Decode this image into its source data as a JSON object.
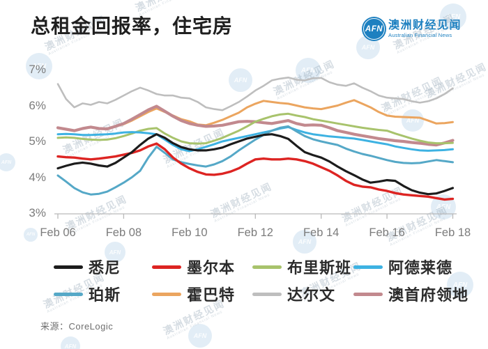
{
  "title": "总租金回报率，住宅房",
  "logo": {
    "abbr": "AFN",
    "name_zh": "澳洲财经见闻",
    "name_en": "Australian Financial News",
    "brand_color": "#1d80c0"
  },
  "source": "来源：CoreLogic",
  "watermark": {
    "text_zh": "澳洲财经见闻",
    "text_en": "Australian Financial News",
    "abbr": "AFN"
  },
  "chart_data": {
    "type": "line",
    "title": "总租金回报率，住宅房",
    "grid": false,
    "legend_position": "bottom",
    "x_start": "Feb 2006",
    "x_step_months": 3,
    "x_ticks": [
      "Feb 06",
      "Feb 08",
      "Feb 10",
      "Feb 12",
      "Feb 14",
      "Feb 16",
      "Feb 18"
    ],
    "y_ticks": [
      {
        "label": "7%",
        "value": 7
      },
      {
        "label": "6%",
        "value": 6
      },
      {
        "label": "5%",
        "value": 5
      },
      {
        "label": "4%",
        "value": 4
      },
      {
        "label": "3%",
        "value": 3
      }
    ],
    "ylim": [
      3,
      7
    ],
    "y_unit": "%",
    "series": [
      {
        "key": "sydney",
        "name": "悉尼",
        "color": "#1c1c1c",
        "values": [
          4.25,
          4.32,
          4.38,
          4.41,
          4.38,
          4.33,
          4.3,
          4.4,
          4.55,
          4.7,
          4.9,
          5.08,
          5.2,
          5.1,
          4.95,
          4.84,
          4.78,
          4.75,
          4.75,
          4.78,
          4.83,
          4.92,
          5.0,
          5.08,
          5.13,
          5.18,
          5.2,
          5.15,
          5.07,
          4.88,
          4.7,
          4.62,
          4.55,
          4.44,
          4.3,
          4.17,
          4.06,
          3.94,
          3.85,
          3.88,
          3.92,
          3.9,
          3.76,
          3.64,
          3.57,
          3.53,
          3.55,
          3.62,
          3.7
        ]
      },
      {
        "key": "melbourne",
        "name": "墨尔本",
        "color": "#dd2422",
        "values": [
          4.58,
          4.56,
          4.55,
          4.52,
          4.5,
          4.52,
          4.55,
          4.58,
          4.63,
          4.68,
          4.75,
          4.86,
          4.94,
          4.78,
          4.55,
          4.38,
          4.25,
          4.15,
          4.08,
          4.07,
          4.1,
          4.16,
          4.25,
          4.38,
          4.5,
          4.52,
          4.5,
          4.5,
          4.52,
          4.5,
          4.45,
          4.38,
          4.28,
          4.18,
          4.05,
          3.9,
          3.79,
          3.74,
          3.72,
          3.66,
          3.62,
          3.56,
          3.52,
          3.5,
          3.48,
          3.46,
          3.42,
          3.38,
          3.4
        ]
      },
      {
        "key": "brisbane",
        "name": "布里斯班",
        "color": "#a8c36c",
        "values": [
          5.1,
          5.11,
          5.1,
          5.07,
          5.05,
          5.04,
          5.05,
          5.09,
          5.15,
          5.22,
          5.3,
          5.35,
          5.37,
          5.22,
          5.1,
          5.0,
          4.95,
          4.94,
          4.95,
          5.02,
          5.1,
          5.2,
          5.3,
          5.42,
          5.55,
          5.63,
          5.7,
          5.75,
          5.77,
          5.72,
          5.68,
          5.62,
          5.58,
          5.54,
          5.5,
          5.46,
          5.42,
          5.38,
          5.35,
          5.32,
          5.3,
          5.22,
          5.15,
          5.08,
          5.02,
          4.97,
          4.95,
          4.95,
          4.96
        ]
      },
      {
        "key": "adelaide",
        "name": "阿德莱德",
        "color": "#3db2e2",
        "values": [
          5.2,
          5.21,
          5.2,
          5.18,
          5.18,
          5.19,
          5.2,
          5.22,
          5.25,
          5.26,
          5.25,
          5.23,
          5.2,
          5.05,
          4.9,
          4.78,
          4.73,
          4.78,
          4.85,
          4.92,
          5.0,
          5.05,
          5.1,
          5.15,
          5.2,
          5.25,
          5.3,
          5.36,
          5.4,
          5.32,
          5.25,
          5.2,
          5.17,
          5.14,
          5.12,
          5.1,
          5.08,
          5.04,
          5.0,
          4.96,
          4.92,
          4.86,
          4.82,
          4.78,
          4.75,
          4.74,
          4.75,
          4.76,
          4.78
        ]
      },
      {
        "key": "perth",
        "name": "珀斯",
        "color": "#55a8c7",
        "values": [
          4.05,
          3.88,
          3.7,
          3.58,
          3.52,
          3.54,
          3.6,
          3.72,
          3.85,
          4.0,
          4.18,
          4.55,
          4.85,
          4.68,
          4.5,
          4.42,
          4.37,
          4.33,
          4.3,
          4.36,
          4.45,
          4.58,
          4.75,
          4.9,
          5.05,
          5.18,
          5.3,
          5.38,
          5.42,
          5.28,
          5.15,
          5.06,
          5.0,
          4.95,
          4.9,
          4.8,
          4.72,
          4.65,
          4.6,
          4.54,
          4.48,
          4.43,
          4.4,
          4.39,
          4.4,
          4.44,
          4.48,
          4.45,
          4.42
        ]
      },
      {
        "key": "hobart",
        "name": "霍巴特",
        "color": "#eba55f",
        "values": [
          5.38,
          5.34,
          5.3,
          5.36,
          5.4,
          5.36,
          5.35,
          5.42,
          5.48,
          5.58,
          5.7,
          5.82,
          5.92,
          5.82,
          5.72,
          5.62,
          5.56,
          5.47,
          5.45,
          5.52,
          5.6,
          5.7,
          5.8,
          5.95,
          6.05,
          6.13,
          6.1,
          6.07,
          6.05,
          6.0,
          5.95,
          5.92,
          5.9,
          5.95,
          6.0,
          6.08,
          6.15,
          6.05,
          5.95,
          5.82,
          5.72,
          5.69,
          5.68,
          5.67,
          5.66,
          5.58,
          5.5,
          5.51,
          5.54
        ]
      },
      {
        "key": "darwin",
        "name": "达尔文",
        "color": "#bebebe",
        "values": [
          6.6,
          6.18,
          5.95,
          6.06,
          6.02,
          6.1,
          6.06,
          6.16,
          6.28,
          6.4,
          6.5,
          6.42,
          6.32,
          6.28,
          6.28,
          6.22,
          6.2,
          6.1,
          5.95,
          5.9,
          5.87,
          5.98,
          6.1,
          6.25,
          6.42,
          6.55,
          6.7,
          6.75,
          6.78,
          6.72,
          6.7,
          6.76,
          6.77,
          6.65,
          6.58,
          6.55,
          6.62,
          6.5,
          6.4,
          6.28,
          6.22,
          6.2,
          6.18,
          6.12,
          6.08,
          6.12,
          6.2,
          6.32,
          6.48
        ]
      },
      {
        "key": "act",
        "name": "澳首府领地",
        "color": "#c2898e",
        "values": [
          5.38,
          5.34,
          5.3,
          5.36,
          5.4,
          5.36,
          5.35,
          5.42,
          5.5,
          5.62,
          5.75,
          5.88,
          5.98,
          5.84,
          5.7,
          5.58,
          5.5,
          5.45,
          5.42,
          5.43,
          5.45,
          5.5,
          5.55,
          5.56,
          5.55,
          5.52,
          5.5,
          5.54,
          5.58,
          5.5,
          5.45,
          5.46,
          5.45,
          5.38,
          5.3,
          5.25,
          5.2,
          5.16,
          5.12,
          5.08,
          5.05,
          5.02,
          5.0,
          4.97,
          4.95,
          4.92,
          4.9,
          4.96,
          5.03
        ]
      }
    ]
  }
}
